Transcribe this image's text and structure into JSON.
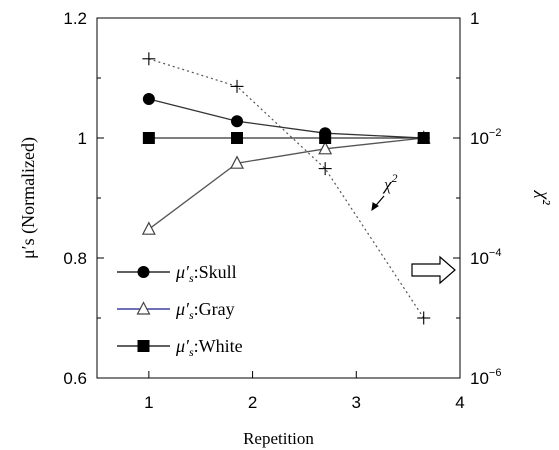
{
  "chart_data": {
    "type": "line",
    "title": "",
    "xlabel": "Repetition",
    "ylabel": "μ′s (Normalized)",
    "y2label": "χ²",
    "xlim": [
      0.5,
      4
    ],
    "xticks": [
      "1",
      "2",
      "3",
      "4"
    ],
    "ylim": [
      0.6,
      1.2
    ],
    "yticks": [
      "0.6",
      "0.8",
      "1",
      "1.2"
    ],
    "y2_scale": "log",
    "y2lim_exp": [
      -6,
      0
    ],
    "y2ticks": [
      {
        "exp": -6,
        "base": "10",
        "sup": "−6"
      },
      {
        "exp": -4,
        "base": "10",
        "sup": "−4"
      },
      {
        "exp": -2,
        "base": "10",
        "sup": "−2"
      },
      {
        "exp": 0,
        "base": "1",
        "sup": ""
      }
    ],
    "grid": false,
    "legend_position": "bottom-left",
    "series": [
      {
        "name": "μ′s:Skull",
        "legend_prefix": "μ′",
        "legend_sub": "s",
        "legend_suffix": ":Skull",
        "axis": "left",
        "marker": "circle",
        "color": "#000000",
        "x": [
          1,
          1.85,
          2.7,
          3.65
        ],
        "values": [
          1.065,
          1.028,
          1.008,
          1.0
        ]
      },
      {
        "name": "μ′s:Gray",
        "legend_prefix": "μ′",
        "legend_sub": "s",
        "legend_suffix": ":Gray",
        "axis": "left",
        "marker": "open-triangle",
        "color": "#1a1a8c",
        "x": [
          1,
          1.85,
          2.7,
          3.65
        ],
        "values": [
          0.848,
          0.958,
          0.982,
          1.0
        ]
      },
      {
        "name": "μ′s:White",
        "legend_prefix": "μ′",
        "legend_sub": "s",
        "legend_suffix": ":White",
        "axis": "left",
        "marker": "square",
        "color": "#000000",
        "x": [
          1,
          1.85,
          2.7,
          3.65
        ],
        "values": [
          1.0,
          1.0,
          1.0,
          1.0
        ]
      }
    ],
    "chi2_series": {
      "axis": "right",
      "marker": "plus",
      "style": "dotted",
      "color": "#444444",
      "x": [
        1,
        1.85,
        2.7,
        3.65
      ],
      "log10_values": [
        -0.68,
        -1.14,
        -2.51,
        -5.0
      ]
    },
    "annotations": [
      {
        "text": "χ",
        "sup": "2",
        "points_to": "chi2_series",
        "style": "arrow"
      },
      {
        "text": "",
        "shape": "hollow-arrow-right",
        "meaning": "right axis"
      }
    ]
  }
}
